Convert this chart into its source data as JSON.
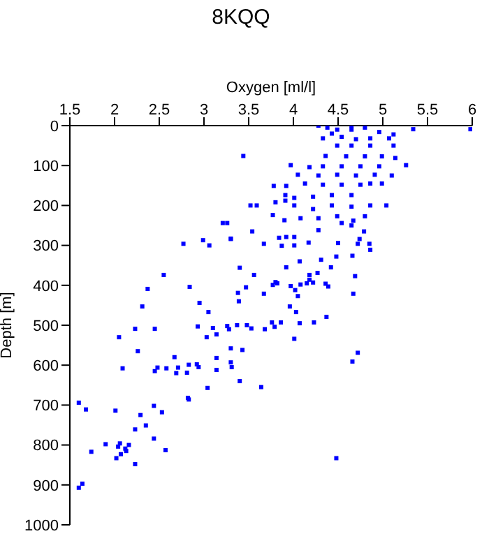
{
  "chart_data": {
    "type": "scatter",
    "title": "8KQQ",
    "xlabel": "Oxygen [ml/l]",
    "ylabel": "Depth [m]",
    "xlim": [
      1.5,
      6
    ],
    "xticks": [
      1.5,
      2,
      2.5,
      3,
      3.5,
      4,
      4.5,
      5,
      5.5,
      6
    ],
    "ylim": [
      1000,
      0
    ],
    "yticks": [
      0,
      100,
      200,
      300,
      400,
      500,
      600,
      700,
      800,
      900,
      1000
    ],
    "grid": false,
    "legend": false,
    "marker": "square",
    "series": [
      {
        "color": "#0000ff",
        "x": [
          1.6,
          1.68,
          1.74,
          1.6,
          1.64,
          2.01,
          2.29,
          2.23,
          2.35,
          2.44,
          2.53,
          2.83,
          1.9,
          2.06,
          2.04,
          2.16,
          2.12,
          2.13,
          2.07,
          2.02,
          2.23,
          2.44,
          2.57,
          4.48,
          2.77,
          2.99,
          3.06,
          3.3,
          3.67,
          3.84,
          4.01,
          3.87,
          4.17,
          2.55,
          2.37,
          2.31,
          2.84,
          2.95,
          3.05,
          2.05,
          2.09,
          2.23,
          2.26,
          2.45,
          2.45,
          2.48,
          2.58,
          2.67,
          2.69,
          2.71,
          2.81,
          2.83,
          2.92,
          2.93,
          2.94,
          3.03,
          3.1,
          3.14,
          3.14,
          3.14,
          3.04,
          2.82,
          3.26,
          3.28,
          3.3,
          3.3,
          3.31,
          3.37,
          3.38,
          3.39,
          3.4,
          3.43,
          3.4,
          3.47,
          3.48,
          3.53,
          3.56,
          3.64,
          3.67,
          3.68,
          3.76,
          3.77,
          3.8,
          3.82,
          3.79,
          3.86,
          3.92,
          3.96,
          3.97,
          4.01,
          4.02,
          4.03,
          4.05,
          4.07,
          4.07,
          4.08,
          4.15,
          4.18,
          4.18,
          4.22,
          4.23,
          4.27,
          4.31,
          4.37,
          4.36,
          4.39,
          4.42,
          4.48,
          4.5,
          4.66,
          4.67,
          4.69,
          4.66,
          4.72,
          4.72,
          4.85,
          4.86,
          4.74,
          4.28,
          5.34,
          5.98,
          4.38,
          4.49,
          4.65,
          4.8,
          4.96,
          5.12,
          4.54,
          4.7,
          4.86,
          5.07,
          4.65,
          4.43,
          4.33,
          4.49,
          4.65,
          4.86,
          5.12,
          3.44,
          4.36,
          4.59,
          4.8,
          4.99,
          5.14,
          5.26,
          3.97,
          4.18,
          4.33,
          4.54,
          4.75,
          4.96,
          4.05,
          4.28,
          4.49,
          4.7,
          4.91,
          5.1,
          4.99,
          3.78,
          3.92,
          4.13,
          4.33,
          4.54,
          4.75,
          4.86,
          3.91,
          3.91,
          4.01,
          4.22,
          4.43,
          4.65,
          3.52,
          3.59,
          3.8,
          4.01,
          4.22,
          4.43,
          4.65,
          4.86,
          5.04,
          3.77,
          3.9,
          4.08,
          4.28,
          4.49,
          4.67,
          4.8,
          3.21,
          3.26,
          3.3,
          3.54,
          3.92,
          4.01,
          4.28,
          4.54,
          4.65,
          4.79
        ],
        "values": [
          694,
          711,
          817,
          907,
          897,
          714,
          725,
          761,
          751,
          702,
          718,
          686,
          798,
          796,
          804,
          800,
          809,
          815,
          823,
          833,
          848,
          784,
          813,
          833,
          296,
          287,
          300,
          284,
          296,
          281,
          300,
          301,
          293,
          374,
          409,
          453,
          404,
          444,
          467,
          530,
          608,
          509,
          565,
          509,
          615,
          606,
          608,
          580,
          620,
          606,
          619,
          599,
          598,
          503,
          605,
          530,
          507,
          523,
          582,
          612,
          657,
          682,
          502,
          510,
          558,
          593,
          605,
          500,
          419,
          440,
          640,
          562,
          356,
          405,
          500,
          508,
          374,
          655,
          421,
          510,
          493,
          399,
          392,
          395,
          504,
          493,
          355,
          453,
          402,
          534,
          412,
          467,
          427,
          340,
          495,
          398,
          395,
          374,
          386,
          393,
          493,
          369,
          336,
          479,
          396,
          403,
          355,
          328,
          294,
          326,
          421,
          377,
          591,
          569,
          296,
          296,
          311,
          284,
          0,
          9,
          9,
          5,
          10,
          10,
          5,
          16,
          22,
          28,
          34,
          32,
          32,
          0,
          20,
          32,
          50,
          50,
          50,
          50,
          76,
          76,
          77,
          77,
          77,
          81,
          99,
          99,
          104,
          102,
          102,
          102,
          102,
          123,
          125,
          123,
          125,
          123,
          125,
          145,
          151,
          151,
          145,
          148,
          148,
          148,
          145,
          174,
          188,
          181,
          178,
          174,
          174,
          200,
          200,
          192,
          200,
          209,
          200,
          203,
          200,
          200,
          224,
          237,
          232,
          232,
          227,
          238,
          227,
          244,
          244,
          283,
          265,
          279,
          279,
          262,
          244,
          250,
          265
        ]
      }
    ]
  }
}
